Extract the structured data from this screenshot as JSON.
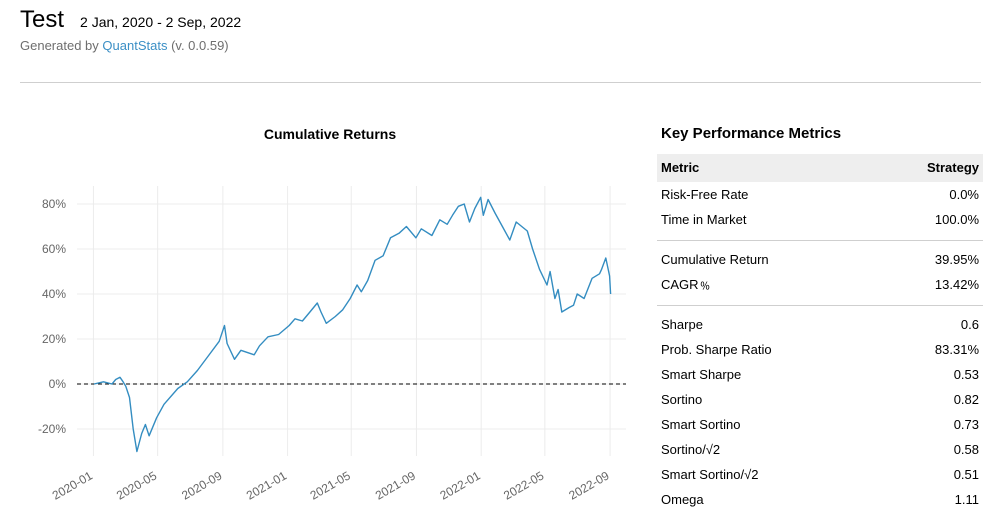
{
  "header": {
    "title": "Test",
    "date_range": "2 Jan, 2020 - 2 Sep, 2022",
    "generated_prefix": "Generated by",
    "generated_link": "QuantStats",
    "generated_suffix": "(v. 0.0.59)"
  },
  "chart_data": {
    "type": "line",
    "title": "Cumulative Returns",
    "xlabel": "",
    "ylabel": "",
    "x_tick_labels": [
      "2020-01",
      "2020-05",
      "2020-09",
      "2021-01",
      "2021-05",
      "2021-09",
      "2022-01",
      "2022-05",
      "2022-09"
    ],
    "y_tick_labels": [
      "80%",
      "60%",
      "40%",
      "20%",
      "0%",
      "-20%"
    ],
    "ylim": [
      -32,
      88
    ],
    "xlim": [
      "2019-12-01",
      "2022-10-01"
    ],
    "grid": true,
    "baseline": 0,
    "line_color": "#348dc1",
    "series": [
      {
        "x": [
          "2020-01-02",
          "2020-01-20",
          "2020-02-05",
          "2020-02-12",
          "2020-02-20",
          "2020-02-26",
          "2020-03-02",
          "2020-03-09",
          "2020-03-16",
          "2020-03-23",
          "2020-04-01",
          "2020-04-08",
          "2020-04-15",
          "2020-04-29",
          "2020-05-13",
          "2020-06-08",
          "2020-06-26",
          "2020-07-15",
          "2020-08-03",
          "2020-08-25",
          "2020-09-04",
          "2020-09-09",
          "2020-09-23",
          "2020-10-05",
          "2020-10-30",
          "2020-11-09",
          "2020-11-25",
          "2020-12-15",
          "2021-01-04",
          "2021-01-15",
          "2021-01-29",
          "2021-02-12",
          "2021-02-26",
          "2021-03-05",
          "2021-03-15",
          "2021-04-01",
          "2021-04-15",
          "2021-04-29",
          "2021-05-12",
          "2021-05-20",
          "2021-06-01",
          "2021-06-15",
          "2021-06-30",
          "2021-07-14",
          "2021-07-30",
          "2021-08-13",
          "2021-08-31",
          "2021-09-10",
          "2021-09-30",
          "2021-10-15",
          "2021-10-29",
          "2021-11-08",
          "2021-11-19",
          "2021-11-30",
          "2021-12-10",
          "2021-12-20",
          "2021-12-31",
          "2022-01-05",
          "2022-01-14",
          "2022-01-27",
          "2022-02-10",
          "2022-02-24",
          "2022-03-08",
          "2022-03-29",
          "2022-04-08",
          "2022-04-21",
          "2022-05-05",
          "2022-05-11",
          "2022-05-20",
          "2022-05-26",
          "2022-06-02",
          "2022-06-16",
          "2022-06-24",
          "2022-07-01",
          "2022-07-14",
          "2022-07-29",
          "2022-08-12",
          "2022-08-16",
          "2022-08-24",
          "2022-08-31",
          "2022-09-02"
        ],
        "y": [
          0,
          1,
          0,
          2,
          3,
          1,
          -1,
          -6,
          -20,
          -30,
          -22,
          -18,
          -23,
          -15,
          -9,
          -2,
          1,
          6,
          12,
          19,
          26,
          18,
          11,
          15,
          13,
          17,
          21,
          22,
          26,
          29,
          28,
          32,
          36,
          32,
          27,
          30,
          33,
          38,
          44,
          41,
          46,
          55,
          57,
          65,
          67,
          70,
          65,
          69,
          66,
          73,
          71,
          75,
          79,
          80,
          72,
          78,
          83,
          75,
          82,
          76,
          70,
          64,
          72,
          68,
          60,
          51,
          44,
          50,
          38,
          42,
          32,
          34,
          35,
          40,
          38,
          47,
          49,
          51,
          56,
          48,
          40
        ]
      }
    ]
  },
  "metrics": {
    "title": "Key Performance Metrics",
    "head_metric": "Metric",
    "head_strategy": "Strategy",
    "group1": [
      {
        "label": "Risk-Free Rate",
        "value": "0.0%"
      },
      {
        "label": "Time in Market",
        "value": "100.0%"
      }
    ],
    "group2": [
      {
        "label": "Cumulative Return",
        "value": "39.95%"
      },
      {
        "label": "CAGR﹪",
        "value": "13.42%"
      }
    ],
    "group3": [
      {
        "label": "Sharpe",
        "value": "0.6"
      },
      {
        "label": "Prob. Sharpe Ratio",
        "value": "83.31%"
      },
      {
        "label": "Smart Sharpe",
        "value": "0.53"
      },
      {
        "label": "Sortino",
        "value": "0.82"
      },
      {
        "label": "Smart Sortino",
        "value": "0.73"
      },
      {
        "label": "Sortino/√2",
        "value": "0.58"
      },
      {
        "label": "Smart Sortino/√2",
        "value": "0.51"
      },
      {
        "label": "Omega",
        "value": "1.11"
      }
    ]
  }
}
